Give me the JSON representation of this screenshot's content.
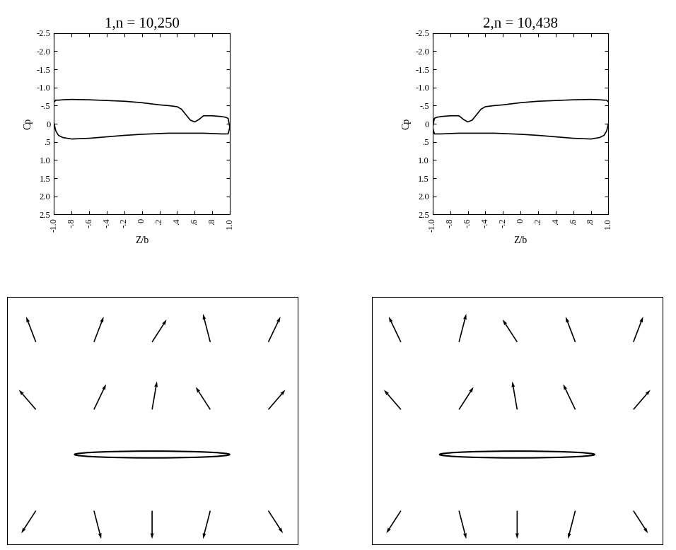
{
  "chart_data": [
    {
      "type": "line",
      "title": "1,n = 10,250",
      "x_label": "Z/b",
      "y_label": "Cp",
      "color": "#000000",
      "x": [
        -1.0,
        -0.98,
        -0.95,
        -0.9,
        -0.8,
        -0.6,
        -0.4,
        -0.2,
        0.0,
        0.2,
        0.3,
        0.4,
        0.45,
        0.5,
        0.55,
        0.6,
        0.65,
        0.7,
        0.8,
        0.9,
        0.95,
        0.98,
        1.0
      ],
      "series": [
        {
          "values": [
            -0.6,
            -0.65,
            -0.65,
            -0.66,
            -0.67,
            -0.66,
            -0.64,
            -0.62,
            -0.58,
            -0.52,
            -0.5,
            -0.47,
            -0.4,
            -0.25,
            -0.1,
            -0.05,
            -0.12,
            -0.22,
            -0.22,
            -0.2,
            -0.18,
            -0.15,
            0.1
          ]
        },
        {
          "values": [
            0.0,
            0.2,
            0.32,
            0.38,
            0.42,
            0.4,
            0.36,
            0.32,
            0.29,
            0.27,
            0.26,
            0.26,
            0.26,
            0.26,
            0.26,
            0.26,
            0.26,
            0.26,
            0.27,
            0.28,
            0.28,
            0.28,
            0.1
          ]
        }
      ],
      "xlim": [
        -1.0,
        1.0
      ],
      "ylim": [
        2.5,
        -2.5
      ],
      "xticks": [
        {
          "value": -1.0,
          "label": "-1.0"
        },
        {
          "value": -0.8,
          "label": "-.8"
        },
        {
          "value": -0.6,
          "label": "-.6"
        },
        {
          "value": -0.4,
          "label": "-.4"
        },
        {
          "value": -0.2,
          "label": "-.2"
        },
        0,
        {
          "value": 0.2,
          "label": ".2"
        },
        {
          "value": 0.4,
          "label": ".4"
        },
        {
          "value": 0.6,
          "label": ".6"
        },
        {
          "value": 0.8,
          "label": ".8"
        },
        {
          "value": 1.0,
          "label": "1.0"
        }
      ],
      "yticks": [
        -2.5,
        {
          "value": -2.0,
          "label": "-2.0"
        },
        -1.5,
        {
          "value": -1.0,
          "label": "-1.0"
        },
        {
          "value": -0.5,
          "label": "-.5"
        },
        0,
        {
          "value": 0.5,
          "label": ".5"
        },
        {
          "value": 1.0,
          "label": "1.0"
        },
        1.5,
        {
          "value": 2.0,
          "label": "2.0"
        },
        2.5
      ]
    },
    {
      "type": "line",
      "title": "2,n = 10,438",
      "x_label": "Z/b",
      "y_label": "Cp",
      "color": "#000000",
      "x": [
        -1.0,
        -0.98,
        -0.95,
        -0.9,
        -0.8,
        -0.7,
        -0.65,
        -0.6,
        -0.55,
        -0.5,
        -0.45,
        -0.4,
        -0.3,
        -0.2,
        0.0,
        0.2,
        0.4,
        0.6,
        0.8,
        0.9,
        0.95,
        0.98,
        1.0
      ],
      "series": [
        {
          "values": [
            0.1,
            -0.15,
            -0.18,
            -0.2,
            -0.22,
            -0.22,
            -0.12,
            -0.05,
            -0.1,
            -0.25,
            -0.4,
            -0.47,
            -0.5,
            -0.52,
            -0.58,
            -0.62,
            -0.64,
            -0.66,
            -0.67,
            -0.66,
            -0.65,
            -0.65,
            -0.6
          ]
        },
        {
          "values": [
            0.1,
            0.28,
            0.28,
            0.28,
            0.27,
            0.26,
            0.26,
            0.26,
            0.26,
            0.26,
            0.26,
            0.26,
            0.26,
            0.27,
            0.29,
            0.32,
            0.36,
            0.4,
            0.42,
            0.38,
            0.32,
            0.2,
            0.0
          ]
        }
      ],
      "xlim": [
        -1.0,
        1.0
      ],
      "ylim": [
        2.5,
        -2.5
      ],
      "xticks": [
        {
          "value": -1.0,
          "label": "-1.0"
        },
        {
          "value": -0.8,
          "label": "-.8"
        },
        {
          "value": -0.6,
          "label": "-.6"
        },
        {
          "value": -0.4,
          "label": "-.4"
        },
        {
          "value": -0.2,
          "label": "-.2"
        },
        0,
        {
          "value": 0.2,
          "label": ".2"
        },
        {
          "value": 0.4,
          "label": ".4"
        },
        {
          "value": 0.6,
          "label": ".6"
        },
        {
          "value": 0.8,
          "label": ".8"
        },
        {
          "value": 1.0,
          "label": "1.0"
        }
      ],
      "yticks": [
        -2.5,
        {
          "value": -2.0,
          "label": "-2.0"
        },
        -1.5,
        {
          "value": -1.0,
          "label": "-1.0"
        },
        {
          "value": -0.5,
          "label": "-.5"
        },
        0,
        {
          "value": 0.5,
          "label": ".5"
        },
        {
          "value": 1.0,
          "label": "1.0"
        },
        1.5,
        {
          "value": 2.0,
          "label": "2.0"
        },
        2.5
      ]
    },
    {
      "type": "quiver",
      "color": "#000000",
      "tick_labels": false,
      "xlim": [
        -1.5,
        1.5
      ],
      "ylim": [
        -0.8,
        1.4
      ],
      "x": [
        -1.2,
        -0.6,
        0,
        0.6,
        1.2,
        -1.2,
        -0.6,
        0,
        0.6,
        1.2,
        -1.2,
        -0.6,
        0,
        0.6,
        1.2
      ],
      "y": [
        -0.5,
        -0.5,
        -0.5,
        -0.5,
        -0.5,
        0.4,
        0.4,
        0.4,
        0.4,
        0.4,
        1.0,
        1.0,
        1.0,
        1.0,
        1.0
      ],
      "u": [
        -0.6,
        0.3,
        0.0,
        -0.3,
        0.6,
        -0.7,
        0.5,
        0.2,
        -0.6,
        0.7,
        -0.4,
        0.4,
        0.6,
        -0.3,
        0.5
      ],
      "v": [
        -0.8,
        -1.0,
        -1.0,
        -1.0,
        -0.8,
        0.7,
        0.9,
        1.0,
        0.8,
        0.7,
        0.9,
        0.9,
        0.8,
        1.0,
        0.9
      ]
    },
    {
      "type": "quiver",
      "color": "#000000",
      "tick_labels": false,
      "xlim": [
        -1.5,
        1.5
      ],
      "ylim": [
        -0.8,
        1.4
      ],
      "x": [
        1.2,
        0.6,
        0,
        -0.6,
        -1.2,
        1.2,
        0.6,
        0,
        -0.6,
        -1.2,
        1.2,
        0.6,
        0,
        -0.6,
        -1.2
      ],
      "y": [
        -0.5,
        -0.5,
        -0.5,
        -0.5,
        -0.5,
        0.4,
        0.4,
        0.4,
        0.4,
        0.4,
        1.0,
        1.0,
        1.0,
        1.0,
        1.0
      ],
      "u": [
        0.6,
        -0.3,
        0.0,
        0.3,
        -0.6,
        0.7,
        -0.5,
        -0.2,
        0.6,
        -0.7,
        0.4,
        -0.4,
        -0.6,
        0.3,
        -0.5
      ],
      "v": [
        -0.8,
        -1.0,
        -1.0,
        -1.0,
        -0.8,
        0.7,
        0.9,
        1.0,
        0.8,
        0.7,
        0.9,
        0.9,
        0.8,
        1.0,
        0.9
      ]
    }
  ]
}
